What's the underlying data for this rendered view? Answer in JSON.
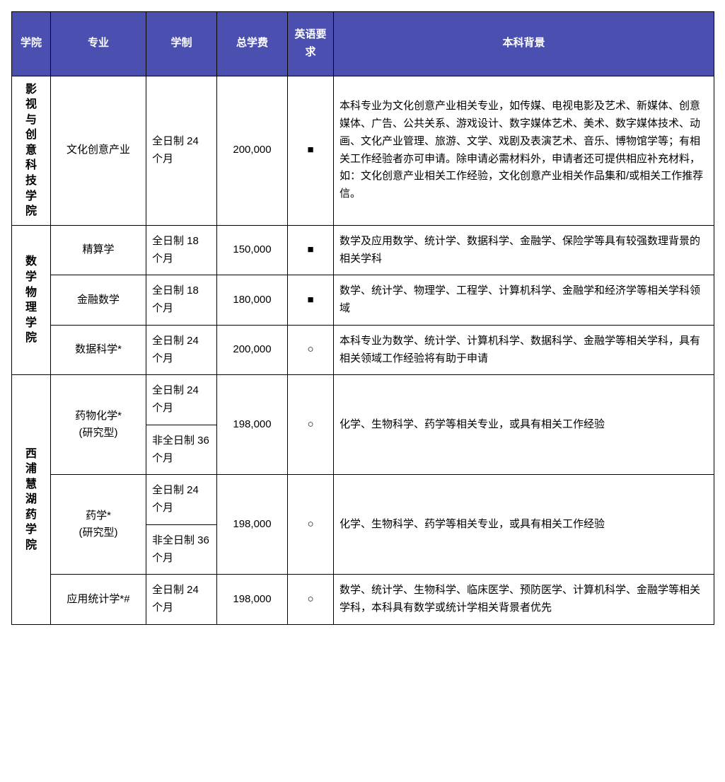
{
  "table": {
    "header_bg": "#4b4fb0",
    "header_fg": "#ffffff",
    "border_color": "#000000",
    "columns": [
      {
        "key": "college",
        "label": "学院"
      },
      {
        "key": "major",
        "label": "专业"
      },
      {
        "key": "duration",
        "label": "学制"
      },
      {
        "key": "fee",
        "label": "总学费"
      },
      {
        "key": "english",
        "label": "英语要求"
      },
      {
        "key": "bg",
        "label": "本科背景"
      }
    ],
    "english_symbols": {
      "required": "■",
      "optional": "○"
    },
    "colleges": [
      {
        "name": "影视与创意科技学院",
        "programs": [
          {
            "major": "文化创意产业",
            "durations": [
              "全日制 24 个月"
            ],
            "fee": "200,000",
            "english": "■",
            "bg": "本科专业为文化创意产业相关专业，如传媒、电视电影及艺术、新媒体、创意媒体、广告、公共关系、游戏设计、数字媒体艺术、美术、数字媒体技术、动画、文化产业管理、旅游、文学、戏剧及表演艺术、音乐、博物馆学等；有相关工作经验者亦可申请。除申请必需材料外，申请者还可提供相应补充材料，如：文化创意产业相关工作经验，文化创意产业相关作品集和/或相关工作推荐信。"
          }
        ]
      },
      {
        "name": "数学物理学院",
        "programs": [
          {
            "major": "精算学",
            "durations": [
              "全日制 18 个月"
            ],
            "fee": "150,000",
            "english": "■",
            "bg": "数学及应用数学、统计学、数据科学、金融学、保险学等具有较强数理背景的相关学科"
          },
          {
            "major": "金融数学",
            "durations": [
              "全日制 18 个月"
            ],
            "fee": "180,000",
            "english": "■",
            "bg": "数学、统计学、物理学、工程学、计算机科学、金融学和经济学等相关学科领域"
          },
          {
            "major": "数据科学*",
            "durations": [
              "全日制 24 个月"
            ],
            "fee": "200,000",
            "english": "○",
            "bg": "本科专业为数学、统计学、计算机科学、数据科学、金融学等相关学科，具有相关领域工作经验将有助于申请"
          }
        ]
      },
      {
        "name": "西浦慧湖药学院",
        "programs": [
          {
            "major": "药物化学*",
            "major_note": "(研究型)",
            "durations": [
              "全日制 24 个月",
              "非全日制 36 个月"
            ],
            "fee": "198,000",
            "english": "○",
            "bg": "化学、生物科学、药学等相关专业，或具有相关工作经验"
          },
          {
            "major": "药学*",
            "major_note": "(研究型)",
            "durations": [
              "全日制 24 个月",
              "非全日制 36 个月"
            ],
            "fee": "198,000",
            "english": "○",
            "bg": "化学、生物科学、药学等相关专业，或具有相关工作经验"
          },
          {
            "major": "应用统计学*#",
            "durations": [
              "全日制 24 个月"
            ],
            "fee": "198,000",
            "english": "○",
            "bg": "数学、统计学、生物科学、临床医学、预防医学、计算机科学、金融学等相关学科，本科具有数学或统计学相关背景者优先"
          }
        ]
      }
    ]
  }
}
